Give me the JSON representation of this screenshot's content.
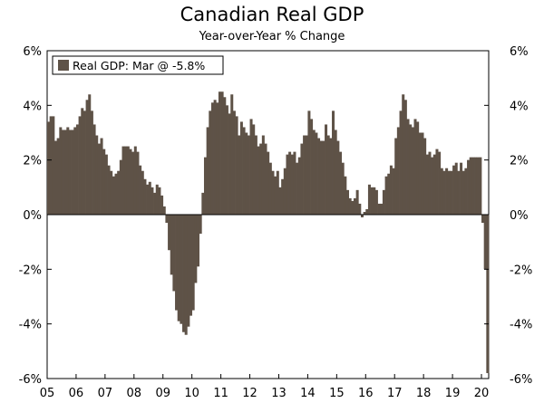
{
  "chart_data": {
    "type": "bar",
    "title": "Canadian Real GDP",
    "subtitle": "Year-over-Year % Change",
    "xlabel": "",
    "ylabel": "",
    "ylim": [
      -6,
      6
    ],
    "yticks": [
      6,
      4,
      2,
      0,
      -2,
      -4,
      -6
    ],
    "ytick_labels": [
      "6%",
      "4%",
      "2%",
      "0%",
      "-2%",
      "-4%",
      "-6%"
    ],
    "xticks": [
      "05",
      "06",
      "07",
      "08",
      "09",
      "10",
      "11",
      "12",
      "13",
      "14",
      "15",
      "16",
      "17",
      "18",
      "19",
      "20"
    ],
    "x_start": "2005-01",
    "frequency": "monthly",
    "legend": {
      "label": "Real GDP: Mar @ -5.8%",
      "position": "top-left"
    },
    "colors": {
      "bar": "#5e5247",
      "axis": "#000000"
    },
    "series": [
      {
        "name": "Real GDP",
        "values": [
          3.4,
          3.6,
          3.6,
          2.7,
          2.8,
          3.2,
          3.1,
          3.1,
          3.2,
          3.1,
          3.1,
          3.2,
          3.3,
          3.6,
          3.9,
          3.8,
          4.2,
          4.4,
          3.8,
          3.3,
          2.9,
          2.6,
          2.8,
          2.4,
          2.2,
          1.8,
          1.6,
          1.4,
          1.5,
          1.6,
          2.0,
          2.5,
          2.5,
          2.5,
          2.4,
          2.3,
          2.5,
          2.3,
          1.8,
          1.6,
          1.3,
          1.1,
          1.2,
          1.0,
          0.8,
          1.1,
          1.0,
          0.7,
          0.3,
          -0.3,
          -1.3,
          -2.2,
          -2.8,
          -3.5,
          -3.9,
          -4.0,
          -4.3,
          -4.4,
          -4.1,
          -3.7,
          -3.5,
          -2.5,
          -1.9,
          -0.7,
          0.8,
          2.1,
          3.2,
          3.8,
          4.1,
          4.2,
          4.1,
          4.5,
          4.5,
          4.3,
          4.0,
          3.7,
          4.4,
          3.8,
          3.6,
          2.9,
          3.4,
          3.2,
          3.0,
          2.9,
          3.5,
          3.3,
          2.9,
          2.5,
          2.6,
          2.9,
          2.6,
          2.3,
          1.9,
          1.6,
          1.4,
          1.6,
          1.0,
          1.3,
          1.7,
          2.2,
          2.3,
          2.2,
          2.3,
          1.9,
          2.1,
          2.6,
          2.9,
          2.9,
          3.8,
          3.5,
          3.1,
          3.0,
          2.8,
          2.7,
          2.7,
          3.3,
          2.9,
          2.8,
          3.8,
          3.1,
          2.7,
          2.3,
          1.9,
          1.4,
          0.9,
          0.6,
          0.5,
          0.6,
          0.9,
          0.4,
          -0.1,
          0.1,
          0.2,
          1.1,
          1.0,
          1.0,
          0.9,
          0.4,
          0.4,
          0.9,
          1.4,
          1.5,
          1.8,
          1.7,
          2.8,
          3.2,
          3.8,
          4.4,
          4.2,
          3.5,
          3.3,
          3.2,
          3.5,
          3.4,
          3.0,
          3.0,
          2.8,
          2.2,
          2.3,
          2.1,
          2.2,
          2.4,
          2.3,
          1.7,
          1.6,
          1.7,
          1.6,
          1.6,
          1.8,
          1.9,
          1.6,
          1.9,
          1.6,
          1.7,
          2.0,
          2.1,
          2.1,
          2.1,
          2.1,
          2.1,
          -0.3,
          -2.0,
          -5.8
        ]
      }
    ]
  }
}
